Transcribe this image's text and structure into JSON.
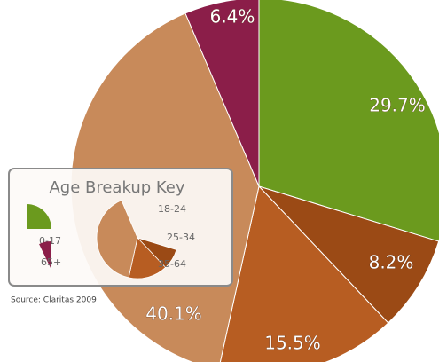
{
  "chart_data": {
    "type": "pie",
    "title": "Age Breakup Key",
    "source": "Source: Claritas 2009",
    "categories": [
      "0-17",
      "18-24",
      "25-34",
      "35-64",
      "65+"
    ],
    "values": [
      29.7,
      8.2,
      15.5,
      40.1,
      6.4
    ],
    "value_labels": [
      "29.7%",
      "8.2%",
      "15.5%",
      "40.1%",
      "6.4%"
    ],
    "colors": [
      "#6b9a1e",
      "#9b4a15",
      "#b75d22",
      "#c88a5a",
      "#8b1e49"
    ]
  }
}
